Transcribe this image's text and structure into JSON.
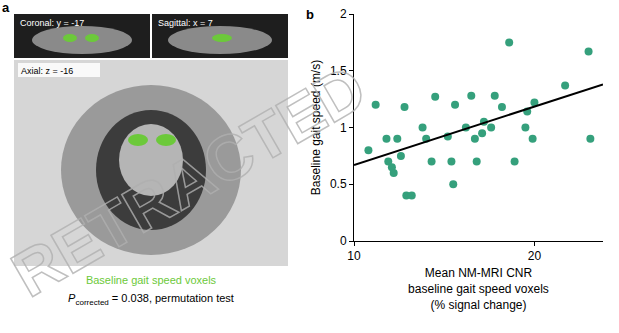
{
  "panel_a": {
    "letter": "a",
    "views": [
      "Coronal: y = -17",
      "Sagittal: x = 7",
      "Axial: z = -16"
    ],
    "caption": "Baseline gait speed voxels",
    "caption_color": "#6cc93a",
    "p_text": {
      "main": "P",
      "sub": "corrected",
      "rest": " = 0.038, permutation test"
    }
  },
  "watermark": "RETRACTED",
  "chart_data": {
    "panel": "b",
    "type": "scatter",
    "ylabel": "Baseline gait speed (m/s)",
    "xlabel_lines": [
      "Mean NM-MRI CNR",
      "baseline gait speed voxels",
      "(% signal change)"
    ],
    "x": [
      10.8,
      11.2,
      11.8,
      11.9,
      12.1,
      12.2,
      12.4,
      12.6,
      12.8,
      12.9,
      13.2,
      13.8,
      14.0,
      14.3,
      14.5,
      15.2,
      15.4,
      15.5,
      15.6,
      16.2,
      16.5,
      16.7,
      16.8,
      17.1,
      17.2,
      17.6,
      17.8,
      18.2,
      18.6,
      18.9,
      19.5,
      19.6,
      19.9,
      20.0,
      21.7,
      23.0,
      23.1
    ],
    "values": [
      0.8,
      1.2,
      0.9,
      0.7,
      0.65,
      0.6,
      0.9,
      0.75,
      1.18,
      0.4,
      0.4,
      1.0,
      0.9,
      0.7,
      1.27,
      0.92,
      0.7,
      0.5,
      1.2,
      1.0,
      1.28,
      0.9,
      0.7,
      0.95,
      1.05,
      1.0,
      1.28,
      1.18,
      1.75,
      0.7,
      1.0,
      1.14,
      0.9,
      1.22,
      1.37,
      1.67,
      0.9
    ],
    "color": "#35a07c",
    "fit_line": {
      "x": [
        10,
        23.8
      ],
      "y": [
        0.67,
        1.38
      ],
      "color": "#000000"
    },
    "xlim": [
      10,
      23.8
    ],
    "xticks": [
      10,
      20
    ],
    "ylim": [
      0,
      2
    ],
    "yticks": [
      0,
      0.5,
      1,
      1.5,
      2
    ],
    "grid": false
  }
}
